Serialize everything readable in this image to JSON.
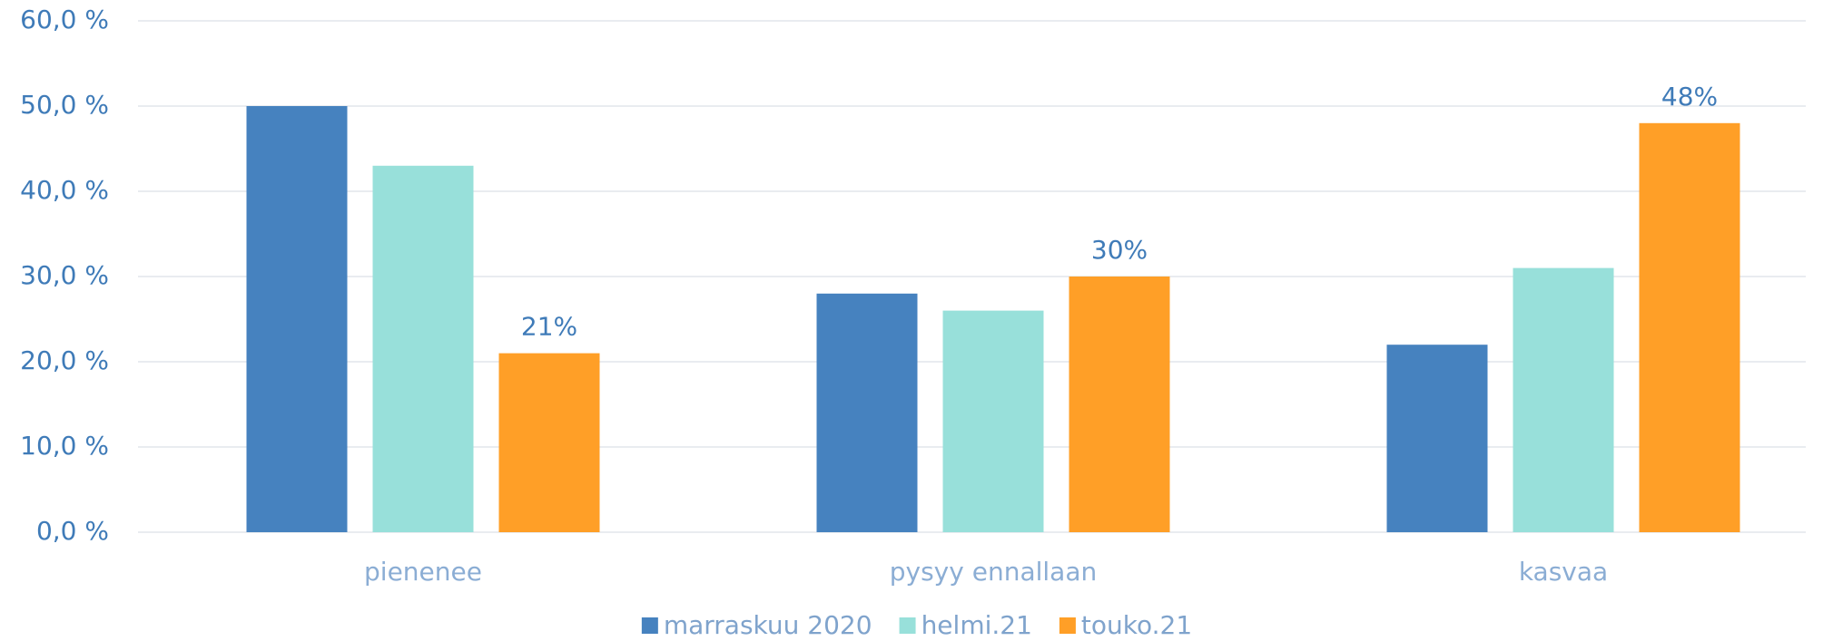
{
  "chart_data": {
    "type": "bar",
    "categories": [
      "pienenee",
      "pysyy ennallaan",
      "kasvaa"
    ],
    "series": [
      {
        "name": "marraskuu 2020",
        "color": "#4682bf",
        "values": [
          50,
          28,
          22
        ]
      },
      {
        "name": "helmi.21",
        "color": "#98e0da",
        "values": [
          43,
          26,
          31
        ]
      },
      {
        "name": "touko.21",
        "color": "#ff9f27",
        "values": [
          21,
          30,
          48
        ],
        "value_labels": [
          "21%",
          "30%",
          "48%"
        ]
      }
    ],
    "ylim": [
      0,
      60
    ],
    "yticks": [
      {
        "value": 0,
        "label": "0,0 %"
      },
      {
        "value": 10,
        "label": "10,0 %"
      },
      {
        "value": 20,
        "label": "20,0 %"
      },
      {
        "value": 30,
        "label": "30,0 %"
      },
      {
        "value": 40,
        "label": "40,0 %"
      },
      {
        "value": 50,
        "label": "50,0 %"
      },
      {
        "value": 60,
        "label": "60,0 %"
      }
    ],
    "grid": true,
    "legend": "bottom"
  }
}
